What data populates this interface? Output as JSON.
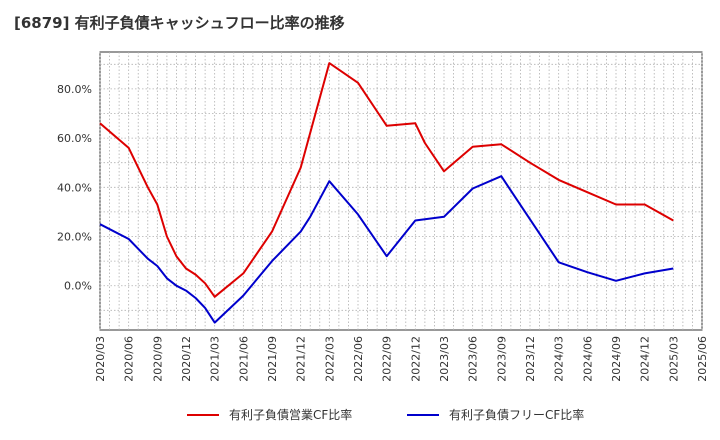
{
  "title": "[6879]  有利子負債キャッシュフロー比率の推移",
  "chart_data": {
    "type": "line",
    "title": "[6879]  有利子負債キャッシュフロー比率の推移",
    "xlabel": "",
    "ylabel": "",
    "ylim": [
      -18,
      95
    ],
    "yticks": [
      0,
      20,
      40,
      60,
      80
    ],
    "ytick_labels": [
      "0.0%",
      "20.0%",
      "40.0%",
      "60.0%",
      "80.0%"
    ],
    "xticks": [
      "2020/03",
      "2020/06",
      "2020/09",
      "2020/12",
      "2021/03",
      "2021/06",
      "2021/09",
      "2021/12",
      "2022/03",
      "2022/06",
      "2022/09",
      "2022/12",
      "2023/03",
      "2023/06",
      "2023/09",
      "2023/12",
      "2024/03",
      "2024/06",
      "2024/09",
      "2024/12",
      "2025/03",
      "2025/06"
    ],
    "grid": true,
    "legend_position": "bottom",
    "colors": {
      "red": "#dd0000",
      "blue": "#0000cc"
    },
    "series": [
      {
        "name": "有利子負債営業CF比率",
        "color": "#dd0000",
        "points": [
          [
            "2020/03",
            66.0
          ],
          [
            "2020/06",
            56.0
          ],
          [
            "2020/07",
            48.0
          ],
          [
            "2020/08",
            40.0
          ],
          [
            "2020/09",
            33.0
          ],
          [
            "2020/10",
            20.0
          ],
          [
            "2020/11",
            12.0
          ],
          [
            "2020/12",
            7.0
          ],
          [
            "2021/01",
            4.5
          ],
          [
            "2021/02",
            1.0
          ],
          [
            "2021/03",
            -4.5
          ],
          [
            "2021/06",
            5.0
          ],
          [
            "2021/09",
            22.0
          ],
          [
            "2021/12",
            48.0
          ],
          [
            "2022/03",
            90.5
          ],
          [
            "2022/06",
            82.5
          ],
          [
            "2022/09",
            65.0
          ],
          [
            "2022/12",
            66.0
          ],
          [
            "2023/01",
            58.0
          ],
          [
            "2023/03",
            46.5
          ],
          [
            "2023/06",
            56.5
          ],
          [
            "2023/09",
            57.5
          ],
          [
            "2023/12",
            50.0
          ],
          [
            "2024/03",
            43.0
          ],
          [
            "2024/06",
            38.0
          ],
          [
            "2024/09",
            33.0
          ],
          [
            "2024/12",
            33.0
          ],
          [
            "2025/03",
            26.5
          ]
        ]
      },
      {
        "name": "有利子負債フリーCF比率",
        "color": "#0000cc",
        "points": [
          [
            "2020/03",
            25.0
          ],
          [
            "2020/06",
            19.0
          ],
          [
            "2020/07",
            15.0
          ],
          [
            "2020/08",
            11.0
          ],
          [
            "2020/09",
            8.0
          ],
          [
            "2020/10",
            3.0
          ],
          [
            "2020/11",
            0.0
          ],
          [
            "2020/12",
            -2.0
          ],
          [
            "2021/01",
            -5.0
          ],
          [
            "2021/02",
            -9.0
          ],
          [
            "2021/03",
            -15.0
          ],
          [
            "2021/06",
            -4.0
          ],
          [
            "2021/09",
            10.0
          ],
          [
            "2021/12",
            22.0
          ],
          [
            "2022/01",
            28.0
          ],
          [
            "2022/03",
            42.5
          ],
          [
            "2022/06",
            29.0
          ],
          [
            "2022/09",
            12.0
          ],
          [
            "2022/12",
            26.5
          ],
          [
            "2023/03",
            28.0
          ],
          [
            "2023/06",
            39.5
          ],
          [
            "2023/09",
            44.5
          ],
          [
            "2023/12",
            27.0
          ],
          [
            "2024/03",
            9.5
          ],
          [
            "2024/06",
            5.5
          ],
          [
            "2024/09",
            2.0
          ],
          [
            "2024/12",
            5.0
          ],
          [
            "2025/03",
            7.0
          ]
        ]
      }
    ]
  }
}
